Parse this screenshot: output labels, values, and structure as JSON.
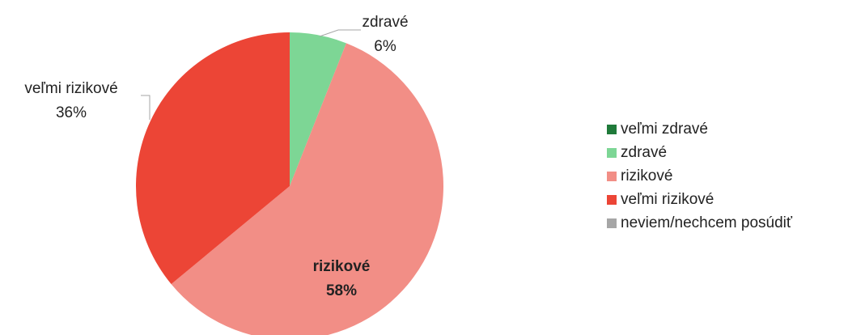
{
  "chart_data": {
    "type": "pie",
    "categories": [
      "veľmi zdravé",
      "zdravé",
      "rizikové",
      "veľmi rizikové",
      "neviem/nechcem posúdiť"
    ],
    "values": [
      0,
      6,
      58,
      36,
      0
    ],
    "value_labels": [
      null,
      "6%",
      "58%",
      "36%",
      null
    ],
    "colors": [
      "#1f7a3a",
      "#7dd695",
      "#f28e86",
      "#ec4536",
      "#a6a6a6"
    ],
    "legend": "right"
  }
}
